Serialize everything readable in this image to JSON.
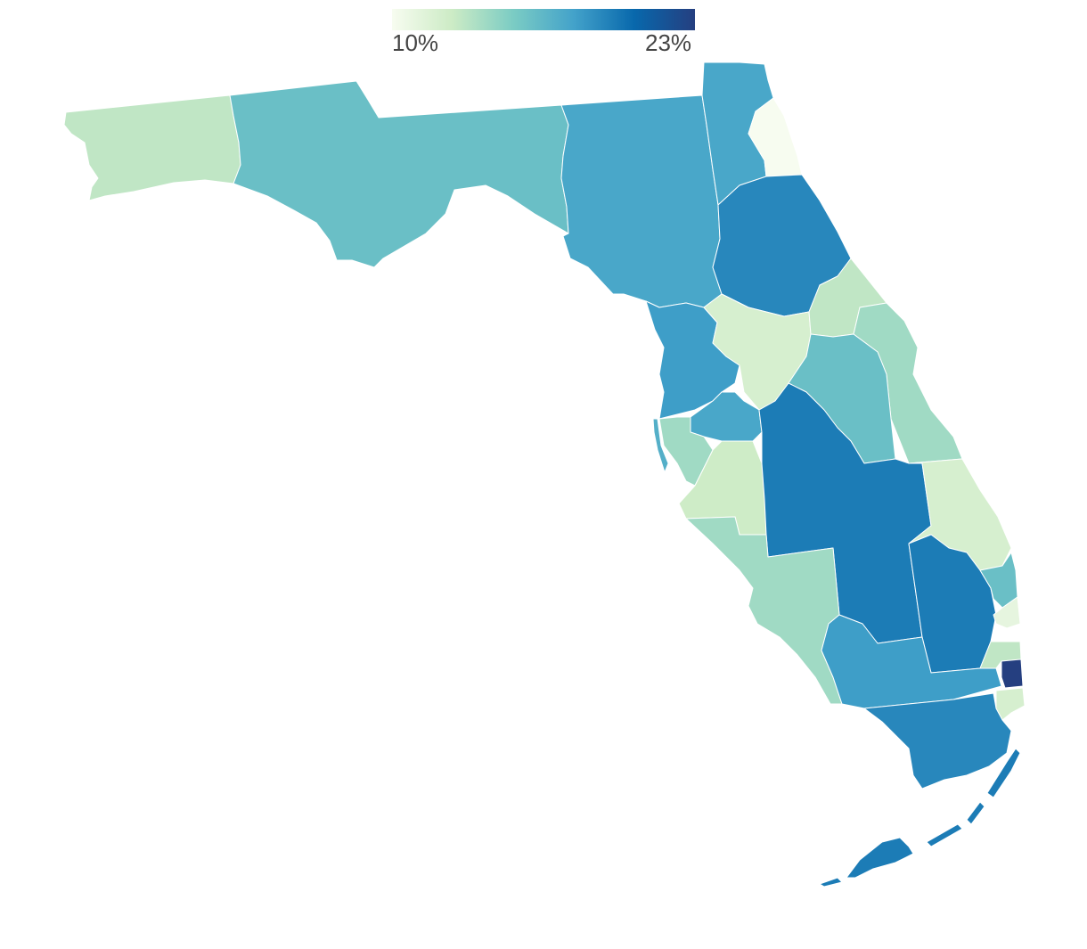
{
  "legend": {
    "min_label": "10%",
    "max_label": "23%",
    "stops": [
      "#f7fcf0",
      "#ccebc5",
      "#7bccc4",
      "#43a2ca",
      "#0868ac",
      "#253f80"
    ]
  },
  "regions": [
    {
      "id": "panhandle-west",
      "value": 13
    },
    {
      "id": "panhandle-central",
      "value": 16
    },
    {
      "id": "big-bend",
      "value": 17.5
    },
    {
      "id": "northeast-interior",
      "value": 17.5
    },
    {
      "id": "northeast-coast",
      "value": 10
    },
    {
      "id": "north-central",
      "value": 19
    },
    {
      "id": "nature-coast",
      "value": 18
    },
    {
      "id": "central-west",
      "value": 12
    },
    {
      "id": "central-north",
      "value": 13
    },
    {
      "id": "east-coast-north",
      "value": 14
    },
    {
      "id": "orlando-area",
      "value": 16
    },
    {
      "id": "tampa-bay-north",
      "value": 17.5
    },
    {
      "id": "tampa-bay-coast",
      "value": 14
    },
    {
      "id": "pinellas",
      "value": 17
    },
    {
      "id": "manatee",
      "value": 12.5
    },
    {
      "id": "central-interior",
      "value": 19.5
    },
    {
      "id": "space-coast-south",
      "value": 12
    },
    {
      "id": "southwest-coast",
      "value": 14
    },
    {
      "id": "lake-okeechobee",
      "value": 19.5
    },
    {
      "id": "treasure-coast",
      "value": 16
    },
    {
      "id": "palm-beach-north",
      "value": 11
    },
    {
      "id": "palm-beach-south",
      "value": 13
    },
    {
      "id": "everglades",
      "value": 18
    },
    {
      "id": "broward-small",
      "value": 23
    },
    {
      "id": "broward-coast",
      "value": 12
    },
    {
      "id": "miami-dade",
      "value": 19
    },
    {
      "id": "florida-keys",
      "value": 19.5
    }
  ]
}
